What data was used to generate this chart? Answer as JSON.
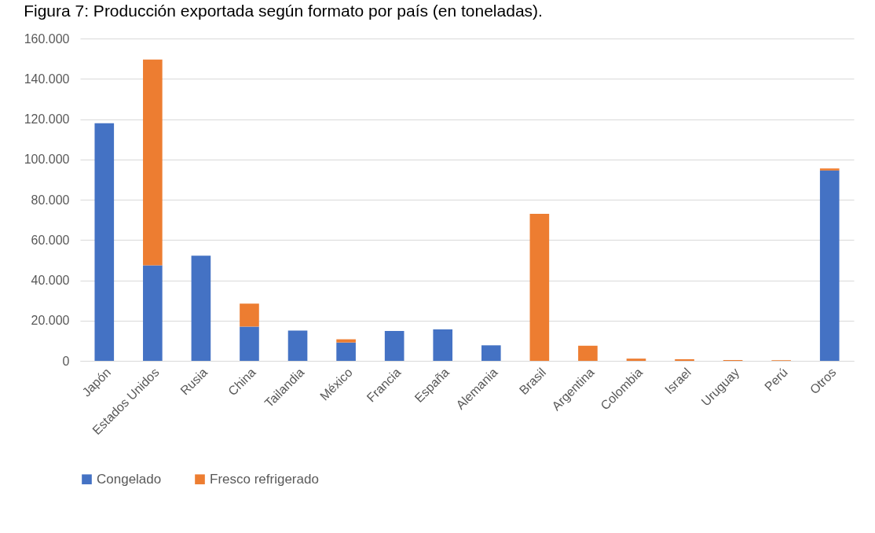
{
  "chart_data": {
    "type": "bar",
    "title": "Figura 7: Producción exportada según formato por país (en toneladas).",
    "categories": [
      "Japón",
      "Estados Unidos",
      "Rusia",
      "China",
      "Tailandia",
      "México",
      "Francia",
      "España",
      "Alemania",
      "Brasil",
      "Argentina",
      "Colombia",
      "Israel",
      "Uruguay",
      "Perú",
      "Otros"
    ],
    "series": [
      {
        "name": "Congelado",
        "color": "#4472c4",
        "values": [
          118000,
          47400,
          52200,
          17000,
          15000,
          9100,
          14800,
          15600,
          7700,
          0,
          0,
          0,
          0,
          0,
          0,
          94500
        ]
      },
      {
        "name": "Fresco refrigerado",
        "color": "#ed7d31",
        "values": [
          0,
          102200,
          0,
          11400,
          0,
          1600,
          0,
          0,
          0,
          73000,
          7500,
          1100,
          800,
          400,
          300,
          1000
        ]
      }
    ],
    "stacked": true,
    "ylim": [
      0,
      160000
    ],
    "yticks": [
      0,
      {
        "value": 20000,
        "label": "20.000"
      },
      {
        "value": 40000,
        "label": "40.000"
      },
      {
        "value": 60000,
        "label": "60.000"
      },
      {
        "value": 80000,
        "label": "80.000"
      },
      {
        "value": 100000,
        "label": "100.000"
      },
      {
        "value": 120000,
        "label": "120.000"
      },
      {
        "value": 140000,
        "label": "140.000"
      },
      {
        "value": 160000,
        "label": "160.000"
      }
    ],
    "grid": "y",
    "legend": "bottom"
  }
}
